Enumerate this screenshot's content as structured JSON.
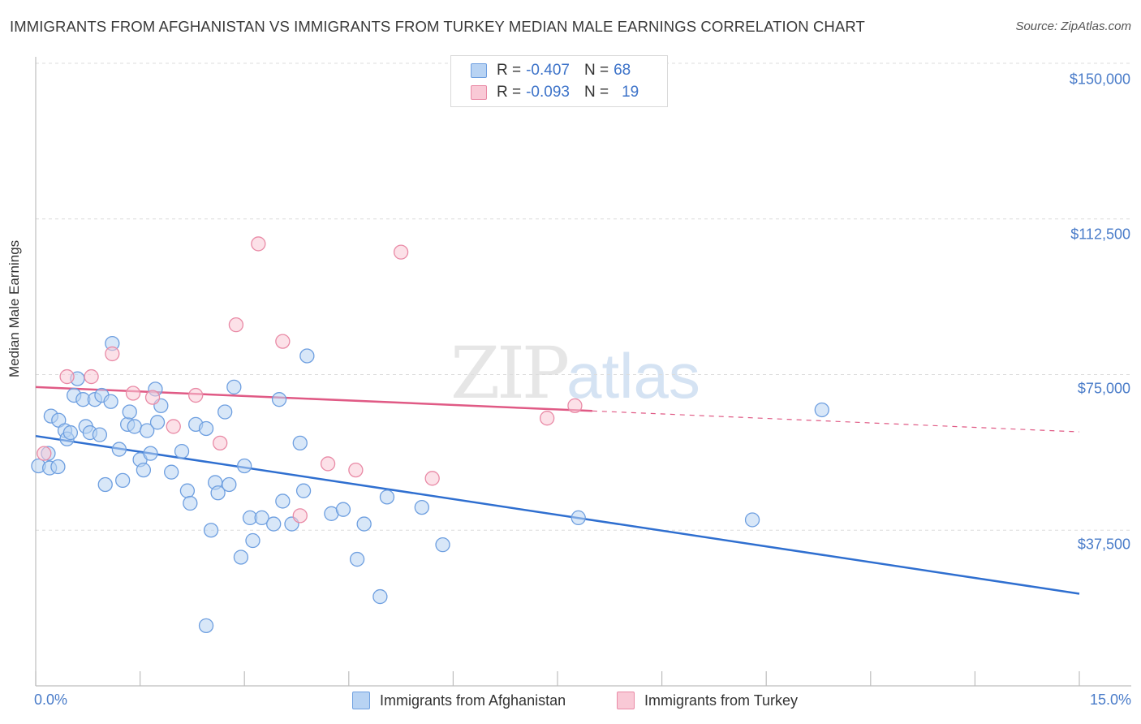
{
  "header": {
    "title": "IMMIGRANTS FROM AFGHANISTAN VS IMMIGRANTS FROM TURKEY MEDIAN MALE EARNINGS CORRELATION CHART",
    "source": "Source: ZipAtlas.com"
  },
  "watermark": {
    "zip": "ZIP",
    "atlas": "atlas"
  },
  "legend": {
    "rows": [
      {
        "r_label": "R = ",
        "r_value": "-0.407",
        "n_label": "N = ",
        "n_value": "68"
      },
      {
        "r_label": "R = ",
        "r_value": "-0.093",
        "n_label": "N = ",
        "n_value": "19"
      }
    ]
  },
  "colors": {
    "afghanistan_fill": "#b8d3f3",
    "afghanistan_stroke": "#6e9fe0",
    "afghanistan_line": "#2f6fd0",
    "turkey_fill": "#f9c9d6",
    "turkey_stroke": "#e98aa6",
    "turkey_line": "#e05a85",
    "tick_text": "#4a7cc9"
  },
  "chart_data": {
    "type": "scatter",
    "title": "IMMIGRANTS FROM AFGHANISTAN VS IMMIGRANTS FROM TURKEY MEDIAN MALE EARNINGS CORRELATION CHART",
    "xlabel": "",
    "ylabel": "Median Male Earnings",
    "xlim": [
      0,
      15
    ],
    "ylim": [
      0,
      155000
    ],
    "x_tick_labels": [
      "0.0%",
      "15.0%"
    ],
    "y_ticks": [
      37500,
      75000,
      112500,
      150000
    ],
    "y_tick_labels": [
      "$37,500",
      "$75,000",
      "$112,500",
      "$150,000"
    ],
    "grid": true,
    "legend_position": "top-center",
    "series": [
      {
        "name": "Immigrants from Afghanistan",
        "r": -0.407,
        "n": 68,
        "trend": {
          "x": [
            0,
            15
          ],
          "y": [
            60200,
            22200
          ],
          "dashed_from": null
        },
        "points": [
          [
            0.04,
            53000
          ],
          [
            0.18,
            56000
          ],
          [
            0.2,
            52500
          ],
          [
            0.32,
            52800
          ],
          [
            0.22,
            65000
          ],
          [
            0.33,
            64000
          ],
          [
            0.42,
            61500
          ],
          [
            0.45,
            59500
          ],
          [
            0.5,
            61000
          ],
          [
            0.55,
            70000
          ],
          [
            0.6,
            74000
          ],
          [
            0.68,
            69000
          ],
          [
            0.72,
            62500
          ],
          [
            0.78,
            61000
          ],
          [
            0.85,
            69000
          ],
          [
            0.92,
            60500
          ],
          [
            0.95,
            70000
          ],
          [
            1.0,
            48500
          ],
          [
            1.08,
            68500
          ],
          [
            1.1,
            82500
          ],
          [
            1.2,
            57000
          ],
          [
            1.25,
            49500
          ],
          [
            1.32,
            63000
          ],
          [
            1.35,
            66000
          ],
          [
            1.42,
            62500
          ],
          [
            1.5,
            54500
          ],
          [
            1.55,
            52000
          ],
          [
            1.6,
            61500
          ],
          [
            1.65,
            56000
          ],
          [
            1.72,
            71500
          ],
          [
            1.75,
            63500
          ],
          [
            1.8,
            67500
          ],
          [
            1.95,
            51500
          ],
          [
            2.1,
            56500
          ],
          [
            2.18,
            47000
          ],
          [
            2.22,
            44000
          ],
          [
            2.3,
            63000
          ],
          [
            2.45,
            62000
          ],
          [
            2.52,
            37500
          ],
          [
            2.58,
            49000
          ],
          [
            2.62,
            46500
          ],
          [
            2.72,
            66000
          ],
          [
            2.78,
            48500
          ],
          [
            2.85,
            72000
          ],
          [
            2.95,
            31000
          ],
          [
            3.0,
            53000
          ],
          [
            3.08,
            40500
          ],
          [
            3.12,
            35000
          ],
          [
            3.25,
            40500
          ],
          [
            3.42,
            39000
          ],
          [
            3.5,
            69000
          ],
          [
            3.55,
            44500
          ],
          [
            3.68,
            39000
          ],
          [
            3.8,
            58500
          ],
          [
            3.85,
            47000
          ],
          [
            3.9,
            79500
          ],
          [
            4.25,
            41500
          ],
          [
            4.42,
            42500
          ],
          [
            4.62,
            30500
          ],
          [
            4.72,
            39000
          ],
          [
            4.95,
            21500
          ],
          [
            5.05,
            45500
          ],
          [
            5.55,
            43000
          ],
          [
            5.85,
            34000
          ],
          [
            7.8,
            40500
          ],
          [
            10.3,
            40000
          ],
          [
            11.3,
            66500
          ],
          [
            2.45,
            14500
          ]
        ]
      },
      {
        "name": "Immigrants from Turkey",
        "r": -0.093,
        "n": 19,
        "trend": {
          "x": [
            0,
            15
          ],
          "y": [
            72000,
            61200
          ],
          "dashed_from": 8.0
        },
        "points": [
          [
            0.12,
            56000
          ],
          [
            0.45,
            74500
          ],
          [
            0.8,
            74500
          ],
          [
            1.1,
            80000
          ],
          [
            1.4,
            70500
          ],
          [
            1.68,
            69500
          ],
          [
            1.98,
            62500
          ],
          [
            2.3,
            70000
          ],
          [
            2.65,
            58500
          ],
          [
            2.88,
            87000
          ],
          [
            3.2,
            106500
          ],
          [
            3.55,
            83000
          ],
          [
            3.8,
            41000
          ],
          [
            4.2,
            53500
          ],
          [
            4.6,
            52000
          ],
          [
            5.25,
            104500
          ],
          [
            5.7,
            50000
          ],
          [
            7.35,
            64500
          ],
          [
            7.75,
            67500
          ]
        ]
      }
    ]
  },
  "bottom_legend": {
    "items": [
      {
        "label": "Immigrants from Afghanistan"
      },
      {
        "label": "Immigrants from Turkey"
      }
    ]
  },
  "axes": {
    "y_title": "Median Male Earnings",
    "x_min_label": "0.0%",
    "x_max_label": "15.0%",
    "y_labels": [
      "$150,000",
      "$112,500",
      "$75,000",
      "$37,500"
    ]
  }
}
